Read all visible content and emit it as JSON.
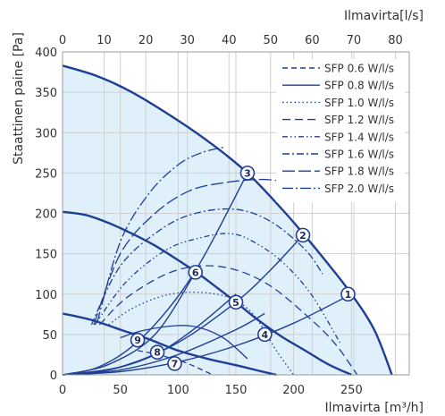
{
  "chart_data": {
    "type": "line",
    "xlabel": "Ilmavirta [m³/h]",
    "x2label": "Ilmavirta[l/s]",
    "ylabel": "Staattinen paine  [Pa]",
    "xlim": [
      0,
      300
    ],
    "x2lim": [
      0,
      83.33
    ],
    "ylim": [
      0,
      400
    ],
    "x_ticks": [
      0,
      50,
      100,
      150,
      200,
      250
    ],
    "x2_ticks": [
      0,
      10,
      20,
      30,
      40,
      50,
      60,
      70,
      80
    ],
    "y_ticks": [
      0,
      50,
      100,
      150,
      200,
      250,
      300,
      350,
      400
    ],
    "grid": true,
    "legend_position": "top-right",
    "colors": {
      "line": "#1f3f95",
      "fill": "#dff0fb",
      "grid": "#cfcfcf"
    },
    "legend": [
      {
        "label": "SFP 0.6 W/l/s",
        "dash": "6,4"
      },
      {
        "label": "SFP 0.8 W/l/s",
        "dash": ""
      },
      {
        "label": "SFP 1.0 W/l/s",
        "dash": "1.5,3"
      },
      {
        "label": "SFP 1.2 W/l/s",
        "dash": "9,5"
      },
      {
        "label": "SFP 1.4 W/l/s",
        "dash": "6,3,1.5,3,1.5,3"
      },
      {
        "label": "SFP 1.6 W/l/s",
        "dash": "8,3,2,3"
      },
      {
        "label": "SFP 1.8 W/l/s",
        "dash": "14,4"
      },
      {
        "label": "SFP 2.0 W/l/s",
        "dash": "12,3,2,3"
      }
    ],
    "fan_curves": [
      {
        "name": "max",
        "x": [
          0,
          30,
          60,
          100,
          130,
          160,
          190,
          210,
          230,
          250,
          270,
          285
        ],
        "y": [
          383,
          370,
          350,
          315,
          285,
          250,
          205,
          172,
          137,
          100,
          55,
          0
        ]
      },
      {
        "name": "mid",
        "x": [
          0,
          20,
          40,
          60,
          80,
          100,
          115,
          130,
          150,
          170,
          190,
          210,
          230,
          250
        ],
        "y": [
          202,
          198,
          188,
          175,
          160,
          142,
          128,
          112,
          90,
          67,
          47,
          30,
          13,
          0
        ]
      },
      {
        "name": "low",
        "x": [
          0,
          25,
          50,
          75,
          100,
          125,
          150,
          170,
          185
        ],
        "y": [
          76,
          68,
          56,
          44,
          30,
          20,
          12,
          5,
          0
        ]
      }
    ],
    "duct_curves": [
      {
        "x": [
          0,
          50,
          100,
          150,
          200,
          250
        ],
        "y": [
          0,
          4,
          16,
          36,
          64,
          100
        ]
      },
      {
        "x": [
          0,
          50,
          100,
          150,
          180,
          208
        ],
        "y": [
          0,
          10,
          40,
          90,
          130,
          173
        ]
      },
      {
        "x": [
          0,
          30,
          60,
          90,
          120,
          160
        ],
        "y": [
          0,
          9,
          35,
          79,
          141,
          250
        ]
      },
      {
        "x": [
          0,
          50,
          100,
          150,
          175
        ],
        "y": [
          0,
          6,
          25,
          56,
          76
        ]
      },
      {
        "x": [
          0,
          40,
          80,
          115,
          150
        ],
        "y": [
          0,
          6,
          25,
          58,
          100
        ]
      },
      {
        "x": [
          0,
          40,
          80,
          115
        ],
        "y": [
          0,
          13,
          50,
          127
        ]
      }
    ],
    "sfp_curves": [
      {
        "sfp": "0.6",
        "x": [
          65,
          80,
          95,
          105,
          115,
          130
        ],
        "y": [
          30,
          26,
          20,
          16,
          10,
          0
        ]
      },
      {
        "sfp": "0.8",
        "x": [
          50,
          70,
          100,
          120,
          140,
          160
        ],
        "y": [
          46,
          55,
          61,
          58,
          45,
          20
        ]
      },
      {
        "sfp": "1.0",
        "x": [
          40,
          60,
          90,
          120,
          145,
          165,
          185,
          200
        ],
        "y": [
          62,
          82,
          99,
          102,
          95,
          75,
          30,
          0
        ]
      },
      {
        "sfp": "1.2",
        "x": [
          32,
          55,
          90,
          120,
          150,
          180,
          210,
          235,
          255
        ],
        "y": [
          62,
          95,
          125,
          135,
          130,
          110,
          75,
          40,
          0
        ]
      },
      {
        "sfp": "1.4",
        "x": [
          28,
          55,
          90,
          120,
          145,
          165,
          190,
          215,
          240
        ],
        "y": [
          62,
          115,
          155,
          170,
          175,
          165,
          140,
          100,
          40
        ]
      },
      {
        "sfp": "1.6",
        "x": [
          25,
          50,
          85,
          115,
          150,
          180,
          210,
          225
        ],
        "y": [
          62,
          135,
          180,
          200,
          205,
          190,
          155,
          125
        ]
      },
      {
        "sfp": "1.8",
        "x": [
          27,
          50,
          80,
          110,
          140,
          170,
          190
        ],
        "y": [
          62,
          150,
          200,
          228,
          238,
          242,
          240
        ]
      },
      {
        "sfp": "2.0",
        "x": [
          30,
          50,
          75,
          100,
          120,
          140
        ],
        "y": [
          65,
          165,
          225,
          260,
          275,
          282
        ]
      }
    ],
    "operating_points": [
      {
        "label": "1",
        "x": 247,
        "y": 100
      },
      {
        "label": "2",
        "x": 208,
        "y": 173
      },
      {
        "label": "3",
        "x": 160,
        "y": 250
      },
      {
        "label": "4",
        "x": 175,
        "y": 50
      },
      {
        "label": "5",
        "x": 150,
        "y": 90
      },
      {
        "label": "6",
        "x": 115,
        "y": 127
      },
      {
        "label": "7",
        "x": 97,
        "y": 14
      },
      {
        "label": "8",
        "x": 82,
        "y": 28
      },
      {
        "label": "9",
        "x": 65,
        "y": 43
      }
    ]
  }
}
